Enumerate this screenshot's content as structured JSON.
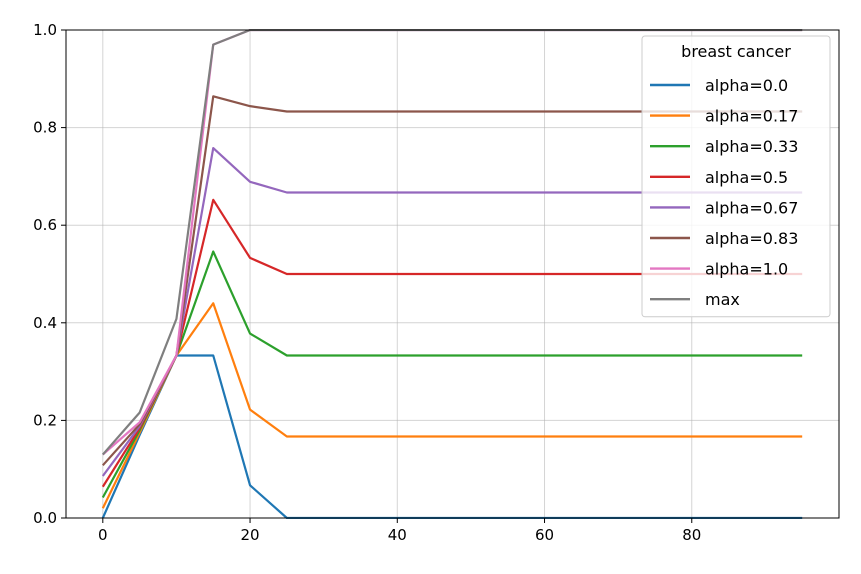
{
  "chart_data": {
    "type": "line",
    "title": "",
    "xlabel": "",
    "ylabel": "",
    "xlim": [
      -5,
      100
    ],
    "ylim": [
      0,
      1
    ],
    "x_ticks": [
      0,
      20,
      40,
      60,
      80
    ],
    "x_tick_labels": [
      "0",
      "20",
      "40",
      "60",
      "80"
    ],
    "y_ticks": [
      0,
      0.2,
      0.4,
      0.6,
      0.8,
      1.0
    ],
    "y_tick_labels": [
      "0.0",
      "0.2",
      "0.4",
      "0.6",
      "0.8",
      "1.0"
    ],
    "grid": true,
    "legend": {
      "title": "breast cancer",
      "placement": "top-right"
    },
    "x": [
      0,
      5,
      10,
      15,
      20,
      25,
      30,
      35,
      40,
      45,
      50,
      55,
      60,
      65,
      70,
      75,
      80,
      85,
      90,
      95
    ],
    "series": [
      {
        "name": "alpha=0.0",
        "color": "#1f77b4",
        "values": [
          0.0,
          0.17,
          0.333,
          0.333,
          0.067,
          0.0,
          0,
          0,
          0,
          0,
          0,
          0,
          0,
          0,
          0,
          0,
          0,
          0,
          0,
          0
        ]
      },
      {
        "name": "alpha=0.17",
        "color": "#ff7f0e",
        "values": [
          0.02,
          0.175,
          0.333,
          0.44,
          0.222,
          0.167,
          0.167,
          0.167,
          0.167,
          0.167,
          0.167,
          0.167,
          0.167,
          0.167,
          0.167,
          0.167,
          0.167,
          0.167,
          0.167,
          0.167
        ]
      },
      {
        "name": "alpha=0.33",
        "color": "#2ca02c",
        "values": [
          0.042,
          0.18,
          0.333,
          0.546,
          0.378,
          0.333,
          0.333,
          0.333,
          0.333,
          0.333,
          0.333,
          0.333,
          0.333,
          0.333,
          0.333,
          0.333,
          0.333,
          0.333,
          0.333,
          0.333
        ]
      },
      {
        "name": "alpha=0.5",
        "color": "#d62728",
        "values": [
          0.064,
          0.184,
          0.333,
          0.652,
          0.533,
          0.5,
          0.5,
          0.5,
          0.5,
          0.5,
          0.5,
          0.5,
          0.5,
          0.5,
          0.5,
          0.5,
          0.5,
          0.5,
          0.5,
          0.5
        ]
      },
      {
        "name": "alpha=0.67",
        "color": "#9467bd",
        "values": [
          0.086,
          0.188,
          0.333,
          0.758,
          0.689,
          0.667,
          0.667,
          0.667,
          0.667,
          0.667,
          0.667,
          0.667,
          0.667,
          0.667,
          0.667,
          0.667,
          0.667,
          0.667,
          0.667,
          0.667
        ]
      },
      {
        "name": "alpha=0.83",
        "color": "#8c564b",
        "values": [
          0.108,
          0.192,
          0.333,
          0.864,
          0.844,
          0.833,
          0.833,
          0.833,
          0.833,
          0.833,
          0.833,
          0.833,
          0.833,
          0.833,
          0.833,
          0.833,
          0.833,
          0.833,
          0.833,
          0.833
        ]
      },
      {
        "name": "alpha=1.0",
        "color": "#e377c2",
        "values": [
          0.13,
          0.196,
          0.333,
          0.97,
          1.0,
          1.0,
          1.0,
          1.0,
          1.0,
          1.0,
          1.0,
          1.0,
          1.0,
          1.0,
          1.0,
          1.0,
          1.0,
          1.0,
          1.0,
          1.0
        ]
      },
      {
        "name": "max",
        "color": "#7f7f7f",
        "values": [
          0.13,
          0.216,
          0.408,
          0.97,
          1.0,
          1.0,
          1.0,
          1.0,
          1.0,
          1.0,
          1.0,
          1.0,
          1.0,
          1.0,
          1.0,
          1.0,
          1.0,
          1.0,
          1.0,
          1.0
        ]
      }
    ]
  }
}
